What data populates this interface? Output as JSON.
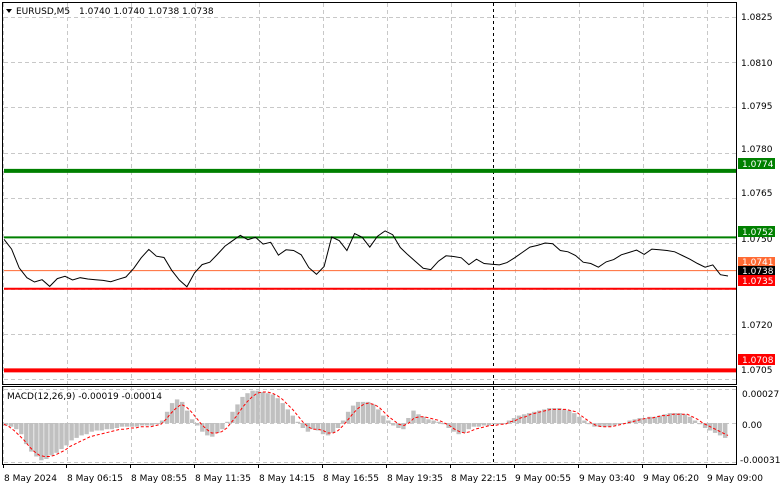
{
  "header": {
    "symbol": "EURUSD,M5",
    "ohlc": "1.0740 1.0740 1.0738 1.0738"
  },
  "colors": {
    "background": "#ffffff",
    "grid": "#c8c8c8",
    "price_line": "#000000",
    "support_green": "#008000",
    "resistance_red": "#ff0000",
    "bid_line": "#ff6a33",
    "macd_hist": "#c0c0c0",
    "macd_signal": "#ff0000"
  },
  "price_axis": {
    "ticks": [
      "1.0825",
      "1.0810",
      "1.0795",
      "1.0780",
      "1.0765",
      "1.0750",
      "1.0720",
      "1.0705"
    ],
    "min": 1.07035,
    "max": 1.08295
  },
  "level_labels": {
    "green_upper": "1.0774",
    "green_lower": "1.0752",
    "bid_upper": "1.0741",
    "current": "1.0738",
    "red_upper": "1.0735",
    "red_lower": "1.0708"
  },
  "levels": [
    {
      "value": 1.0774,
      "color": "#008000",
      "width": 4
    },
    {
      "value": 1.0752,
      "color": "#008000",
      "width": 2
    },
    {
      "value": 1.0741,
      "color": "#ff6a33",
      "width": 1
    },
    {
      "value": 1.0735,
      "color": "#ff0000",
      "width": 2
    },
    {
      "value": 1.0708,
      "color": "#ff0000",
      "width": 4
    }
  ],
  "time_axis": {
    "labels": [
      "8 May 2024",
      "8 May 06:15",
      "8 May 08:55",
      "8 May 11:35",
      "8 May 14:15",
      "8 May 16:55",
      "8 May 19:35",
      "8 May 22:15",
      "9 May 00:55",
      "9 May 03:40",
      "9 May 06:20",
      "9 May 09:00"
    ]
  },
  "macd": {
    "label": "MACD(12,26,9) -0.00019 -0.00014",
    "ticks": [
      "0.00027",
      "0.00",
      "-0.00031"
    ],
    "min": -0.00033,
    "max": 0.00029
  },
  "chart_data": {
    "type": "line",
    "title": "EURUSD,M5",
    "series": [
      {
        "name": "EURUSD,M5",
        "x_start": "8 May 2024",
        "values": [
          1.0751,
          1.0748,
          1.0742,
          1.0739,
          1.0737,
          1.0738,
          1.0736,
          1.0738,
          1.0739,
          1.0738,
          1.0739,
          1.0738,
          1.0738,
          1.0738,
          1.0737,
          1.0738,
          1.0739,
          1.0742,
          1.0745,
          1.0748,
          1.0746,
          1.0745,
          1.0741,
          1.0738,
          1.0736,
          1.074,
          1.0743,
          1.0744,
          1.0746,
          1.0749,
          1.0751,
          1.0753,
          1.0751,
          1.0752,
          1.075,
          1.075,
          1.0746,
          1.0748,
          1.0748,
          1.0746,
          1.0742,
          1.074,
          1.0742,
          1.0752,
          1.0751,
          1.0748,
          1.0753,
          1.0752,
          1.0749,
          1.0752,
          1.0754,
          1.0753,
          1.0749,
          1.0746,
          1.0744,
          1.0742,
          1.0741,
          1.0744,
          1.0746,
          1.0746,
          1.0745,
          1.0743,
          1.0745,
          1.0743,
          1.0743,
          1.0743,
          1.0744,
          1.0745,
          1.0747,
          1.0749,
          1.0749,
          1.075,
          1.075,
          1.0748,
          1.0747,
          1.0746,
          1.0744,
          1.0743,
          1.0742,
          1.0744,
          1.0745,
          1.0746,
          1.0747,
          1.0748,
          1.0746,
          1.0748,
          1.0748,
          1.0748,
          1.0747,
          1.0746,
          1.0745,
          1.0743,
          1.0742,
          1.0743,
          1.074,
          1.0739
        ]
      }
    ],
    "macd_histogram": [
      -2e-05,
      -3e-05,
      -5e-05,
      -9e-05,
      -0.00017,
      -0.00023,
      -0.00027,
      -0.0003,
      -0.00029,
      -0.00026,
      -0.00024,
      -0.00021,
      -0.00018,
      -0.00014,
      -0.00012,
      -0.0001,
      -9e-05,
      -7e-05,
      -6e-05,
      -6e-05,
      -5e-05,
      -5e-05,
      -4e-05,
      -3e-05,
      -3e-05,
      -3e-05,
      -3e-05,
      -2e-05,
      -2e-05,
      -2e-05,
      -1e-05,
      2e-05,
      9e-05,
      0.00016,
      0.00019,
      0.00017,
      0.0001,
      3e-05,
      -2e-05,
      -7e-05,
      -0.0001,
      -0.00011,
      -8e-05,
      -5e-05,
      1e-05,
      9e-05,
      0.00015,
      0.00021,
      0.00024,
      0.00026,
      0.00026,
      0.00025,
      0.00024,
      0.00023,
      0.0002,
      0.00016,
      0.00011,
      6e-05,
      1e-05,
      -4e-05,
      -7e-05,
      -5e-05,
      -6e-05,
      -9e-05,
      -0.0001,
      -8e-05,
      -4e-05,
      2e-05,
      9e-05,
      0.00014,
      0.00017,
      0.00017,
      0.00017,
      0.00015,
      0.00011,
      6e-05,
      2e-05,
      -2e-05,
      -4e-05,
      -5e-05,
      4e-05,
      0.0001,
      7e-05,
      5e-05,
      3e-05,
      2e-05,
      1e-05,
      -1e-05,
      -4e-05,
      -7e-05,
      -9e-05,
      -8e-05,
      -5e-05,
      -3e-05,
      -3e-05,
      -2e-05,
      -2e-05,
      -1e-05,
      -1e-05,
      0.0,
      2e-05,
      4e-05,
      6e-05,
      7e-05,
      8e-05,
      9e-05,
      0.0001,
      0.00011,
      0.00012,
      0.00012,
      0.00012,
      0.00011,
      0.0001,
      8e-05,
      5e-05,
      2e-05,
      -1e-05,
      -3e-05,
      -3e-05,
      -3e-05,
      -3e-05,
      -2e-05,
      -1e-05,
      0.0,
      2e-05,
      3e-05,
      4e-05,
      4e-05,
      5e-05,
      5e-05,
      6e-05,
      7e-05,
      8e-05,
      8e-05,
      8e-05,
      7e-05,
      5e-05,
      2e-05,
      -1e-05,
      -4e-05,
      -6e-05,
      -8e-05,
      -0.0001,
      -0.00012
    ],
    "macd_signal": [
      -1e-05,
      -3e-05,
      -6e-05,
      -0.0001,
      -0.00014,
      -0.00019,
      -0.00023,
      -0.00026,
      -0.00027,
      -0.00027,
      -0.00026,
      -0.00024,
      -0.00022,
      -0.00019,
      -0.00017,
      -0.00015,
      -0.00013,
      -0.00011,
      -0.0001,
      -9e-05,
      -8e-05,
      -7e-05,
      -6e-05,
      -5e-05,
      -5e-05,
      -4e-05,
      -4e-05,
      -3e-05,
      -3e-05,
      -3e-05,
      -2e-05,
      -1e-05,
      3e-05,
      8e-05,
      0.00012,
      0.00015,
      0.00013,
      9e-05,
      4e-05,
      -1e-05,
      -5e-05,
      -8e-05,
      -8e-05,
      -7e-05,
      -4e-05,
      1e-05,
      6e-05,
      0.00012,
      0.00017,
      0.00021,
      0.00024,
      0.00025,
      0.00025,
      0.00024,
      0.00022,
      0.00019,
      0.00015,
      0.00011,
      6e-05,
      1e-05,
      -3e-05,
      -5e-05,
      -5e-05,
      -6e-05,
      -8e-05,
      -8e-05,
      -6e-05,
      -2e-05,
      3e-05,
      8e-05,
      0.00012,
      0.00015,
      0.00016,
      0.00015,
      0.00013,
      9e-05,
      5e-05,
      2e-05,
      -1e-05,
      -2e-05,
      0.0,
      4e-05,
      5e-05,
      5e-05,
      4e-05,
      3e-05,
      2e-05,
      0.0,
      -2e-05,
      -5e-05,
      -7e-05,
      -8e-05,
      -7e-05,
      -5e-05,
      -4e-05,
      -3e-05,
      -2e-05,
      -2e-05,
      -1e-05,
      -1e-05,
      1e-05,
      2e-05,
      4e-05,
      5e-05,
      7e-05,
      8e-05,
      9e-05,
      0.0001,
      0.00011,
      0.00011,
      0.00011,
      0.00011,
      0.0001,
      9e-05,
      6e-05,
      3e-05,
      0.0,
      -2e-05,
      -3e-05,
      -3e-05,
      -3e-05,
      -2e-05,
      -1e-05,
      0.0,
      1e-05,
      2e-05,
      3e-05,
      4e-05,
      4e-05,
      5e-05,
      6e-05,
      6e-05,
      7e-05,
      7e-05,
      7e-05,
      7e-05,
      5e-05,
      3e-05,
      0.0,
      -2e-05,
      -4e-05,
      -6e-05,
      -8e-05,
      -0.0001
    ]
  }
}
